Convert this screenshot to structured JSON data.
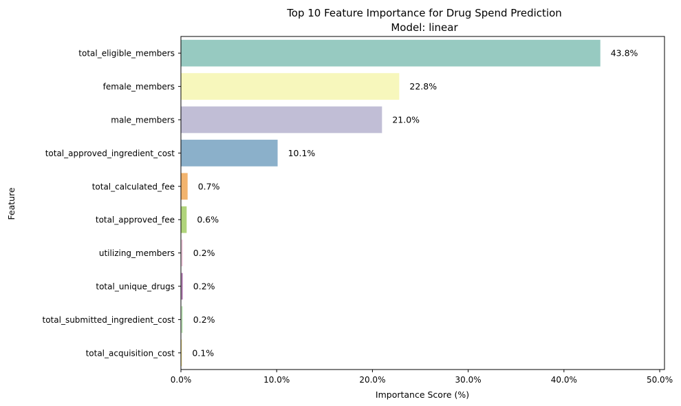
{
  "chart_data": {
    "type": "bar",
    "orientation": "horizontal",
    "title": "Top 10 Feature Importance for Drug Spend Prediction",
    "subtitle": "Model: linear",
    "xlabel": "Importance Score (%)",
    "ylabel": "Feature",
    "xlim": [
      0,
      50.5
    ],
    "xticks": [
      0,
      10,
      20,
      30,
      40,
      50
    ],
    "xtick_labels": [
      "0.0%",
      "10.0%",
      "20.0%",
      "30.0%",
      "40.0%",
      "50.0%"
    ],
    "grid": false,
    "categories": [
      "total_eligible_members",
      "female_members",
      "male_members",
      "total_approved_ingredient_cost",
      "total_calculated_fee",
      "total_approved_fee",
      "utilizing_members",
      "total_unique_drugs",
      "total_submitted_ingredient_cost",
      "total_acquisition_cost"
    ],
    "values": [
      43.8,
      22.8,
      21.0,
      10.1,
      0.7,
      0.6,
      0.2,
      0.2,
      0.2,
      0.1
    ],
    "value_labels": [
      "43.8%",
      "22.8%",
      "21.0%",
      "10.1%",
      "0.7%",
      "0.6%",
      "0.2%",
      "0.2%",
      "0.2%",
      "0.1%"
    ],
    "colors": [
      "#97cac1",
      "#f7f7bc",
      "#c1bed6",
      "#8bb0ca",
      "#f2b46e",
      "#b0d47b",
      "#f4d1e2",
      "#ba88ba",
      "#c9eac2",
      "#fbe88f"
    ]
  }
}
